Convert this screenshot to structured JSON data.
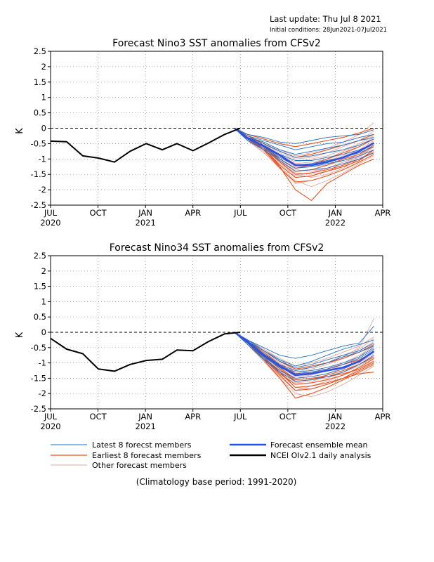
{
  "header": {
    "last_update": "Last update: Thu Jul 8 2021",
    "initial_conditions": "Initial conditions: 28Jun2021-07Jul2021"
  },
  "legend": {
    "latest": "Latest 8 forecst members",
    "earliest": "Earliest 8 forecast members",
    "other": "Other forecast members",
    "mean": "Forecast ensemble mean",
    "analysis": "NCEI OIv2.1 daily analysis"
  },
  "footer": "(Climatology base period: 1991-2020)",
  "colors": {
    "latest": "#1f6fc4",
    "earliest": "#e8501a",
    "other": "#e0a8a0",
    "mean": "#2a4fe6",
    "analysis": "#000000",
    "grid": "#909090"
  },
  "chart_data": [
    {
      "type": "line",
      "title": "Forecast Nino3 SST anomalies from CFSv2",
      "ylabel": "K",
      "xlabel": "",
      "ylim": [
        -2.5,
        2.5
      ],
      "yticks": [
        "2.5",
        "2",
        "1.5",
        "1",
        "0.5",
        "0",
        "-0.5",
        "-1",
        "-1.5",
        "-2",
        "-2.5"
      ],
      "xticks": [
        {
          "month": "JUL",
          "year": "2020"
        },
        {
          "month": "OCT",
          "year": ""
        },
        {
          "month": "JAN",
          "year": "2021"
        },
        {
          "month": "APR",
          "year": ""
        },
        {
          "month": "JUL",
          "year": ""
        },
        {
          "month": "OCT",
          "year": ""
        },
        {
          "month": "JAN",
          "year": "2022"
        },
        {
          "month": "APR",
          "year": ""
        }
      ],
      "grid": true,
      "observed": {
        "name": "NCEI OIv2.1 daily analysis",
        "x": [
          "2020-07-01",
          "2020-08-01",
          "2020-09-01",
          "2020-10-01",
          "2020-11-01",
          "2020-12-01",
          "2021-01-01",
          "2021-02-01",
          "2021-03-01",
          "2021-04-01",
          "2021-05-01",
          "2021-06-01",
          "2021-07-01"
        ],
        "y": [
          -0.42,
          -0.44,
          -0.9,
          -0.97,
          -1.1,
          -0.75,
          -0.5,
          -0.7,
          -0.5,
          -0.73,
          -0.48,
          -0.2,
          0.0
        ]
      },
      "forecast_months": [
        "2021-06-20",
        "2021-07-15",
        "2021-08-15",
        "2021-09-15",
        "2021-10-15",
        "2021-11-15",
        "2021-12-15",
        "2022-01-15",
        "2022-02-15",
        "2022-03-15"
      ],
      "ensemble_mean": [
        0.0,
        -0.32,
        -0.58,
        -0.88,
        -1.2,
        -1.2,
        -1.1,
        -0.95,
        -0.75,
        -0.48
      ],
      "latest_members": [
        [
          0.0,
          -0.2,
          -0.3,
          -0.45,
          -0.5,
          -0.4,
          -0.3,
          -0.25,
          -0.2,
          -0.05
        ],
        [
          0.0,
          -0.25,
          -0.4,
          -0.55,
          -0.7,
          -0.6,
          -0.5,
          -0.45,
          -0.3,
          -0.2
        ],
        [
          0.0,
          -0.3,
          -0.45,
          -0.7,
          -0.85,
          -0.75,
          -0.65,
          -0.55,
          -0.4,
          -0.3
        ],
        [
          0.0,
          -0.3,
          -0.5,
          -0.75,
          -0.95,
          -0.9,
          -0.8,
          -0.7,
          -0.55,
          -0.35
        ],
        [
          0.0,
          -0.35,
          -0.55,
          -0.85,
          -1.05,
          -1.05,
          -0.95,
          -0.85,
          -0.7,
          -0.5
        ],
        [
          0.0,
          -0.35,
          -0.6,
          -0.95,
          -1.2,
          -1.15,
          -1.05,
          -0.95,
          -0.8,
          -0.6
        ],
        [
          0.0,
          -0.4,
          -0.65,
          -1.0,
          -1.3,
          -1.25,
          -1.15,
          -1.05,
          -0.9,
          -0.7
        ],
        [
          0.0,
          -0.4,
          -0.7,
          -1.05,
          -1.4,
          -1.35,
          -1.3,
          -1.15,
          -1.0,
          -0.8
        ]
      ],
      "earliest_members": [
        [
          0.0,
          -0.3,
          -0.6,
          -1.1,
          -1.5,
          -1.45,
          -1.35,
          -1.2,
          -1.0,
          -0.8
        ],
        [
          0.0,
          -0.35,
          -0.7,
          -1.3,
          -1.75,
          -1.7,
          -1.55,
          -1.35,
          -1.1,
          -0.85
        ],
        [
          0.0,
          -0.3,
          -0.65,
          -1.25,
          -2.0,
          -2.35,
          -1.8,
          -1.5,
          -1.2,
          -1.0
        ],
        [
          0.0,
          -0.3,
          -0.55,
          -1.0,
          -1.3,
          -1.2,
          -1.0,
          -0.8,
          -0.6,
          -0.35
        ],
        [
          0.0,
          -0.25,
          -0.5,
          -0.75,
          -0.95,
          -0.85,
          -0.7,
          -0.55,
          -0.4,
          -0.2
        ],
        [
          0.0,
          -0.2,
          -0.35,
          -0.5,
          -0.6,
          -0.5,
          -0.4,
          -0.3,
          -0.15,
          0.0
        ],
        [
          0.0,
          -0.35,
          -0.65,
          -1.2,
          -1.6,
          -1.55,
          -1.4,
          -1.25,
          -1.05,
          -0.7
        ],
        [
          0.0,
          -0.3,
          -0.6,
          -1.05,
          -1.4,
          -1.35,
          -1.2,
          -1.0,
          -0.85,
          -0.55
        ]
      ],
      "other_members": [
        [
          0.0,
          -0.3,
          -0.6,
          -1.0,
          -1.35,
          -1.4,
          -1.3,
          -1.1,
          -0.9,
          -0.55
        ],
        [
          0.0,
          -0.35,
          -0.75,
          -1.2,
          -1.6,
          -1.55,
          -1.4,
          -1.2,
          -0.9,
          -0.6
        ],
        [
          0.0,
          -0.25,
          -0.45,
          -0.7,
          -0.9,
          -0.8,
          -0.65,
          -0.45,
          -0.2,
          0.18
        ],
        [
          0.0,
          -0.3,
          -0.55,
          -0.9,
          -1.15,
          -1.1,
          -1.0,
          -0.85,
          -0.6,
          -0.35
        ],
        [
          0.0,
          -0.4,
          -0.8,
          -1.3,
          -1.8,
          -1.7,
          -1.55,
          -1.35,
          -1.1,
          -0.85
        ],
        [
          0.0,
          -0.3,
          -0.6,
          -0.95,
          -1.25,
          -1.2,
          -1.05,
          -0.9,
          -0.7,
          -0.4
        ],
        [
          0.0,
          -0.35,
          -0.7,
          -1.1,
          -1.45,
          -1.5,
          -1.4,
          -1.25,
          -1.05,
          -0.75
        ],
        [
          0.0,
          -0.25,
          -0.5,
          -0.8,
          -1.0,
          -0.95,
          -0.8,
          -0.6,
          -0.4,
          -0.1
        ],
        [
          0.0,
          -0.3,
          -0.65,
          -1.05,
          -1.5,
          -1.6,
          -1.5,
          -1.3,
          -1.0,
          -0.7
        ],
        [
          0.0,
          -0.35,
          -0.6,
          -1.0,
          -1.3,
          -1.25,
          -1.2,
          -1.05,
          -0.85,
          -0.5
        ],
        [
          0.0,
          -0.4,
          -0.75,
          -1.25,
          -1.7,
          -1.9,
          -1.7,
          -1.45,
          -1.15,
          -0.9
        ],
        [
          0.0,
          -0.3,
          -0.55,
          -0.85,
          -1.1,
          -1.0,
          -0.9,
          -0.7,
          -0.5,
          -0.25
        ],
        [
          0.0,
          -0.35,
          -0.7,
          -1.15,
          -1.55,
          -1.45,
          -1.3,
          -1.1,
          -0.95,
          -0.6
        ],
        [
          0.0,
          -0.25,
          -0.5,
          -0.9,
          -1.2,
          -1.15,
          -1.0,
          -0.75,
          -0.55,
          -0.3
        ]
      ]
    },
    {
      "type": "line",
      "title": "Forecast Nino34 SST anomalies from CFSv2",
      "ylabel": "K",
      "xlabel": "",
      "ylim": [
        -2.5,
        2.5
      ],
      "yticks": [
        "2.5",
        "2",
        "1.5",
        "1",
        "0.5",
        "0",
        "-0.5",
        "-1",
        "-1.5",
        "-2",
        "-2.5"
      ],
      "xticks": [
        {
          "month": "JUL",
          "year": "2020"
        },
        {
          "month": "OCT",
          "year": ""
        },
        {
          "month": "JAN",
          "year": "2021"
        },
        {
          "month": "APR",
          "year": ""
        },
        {
          "month": "JUL",
          "year": ""
        },
        {
          "month": "OCT",
          "year": ""
        },
        {
          "month": "JAN",
          "year": "2022"
        },
        {
          "month": "APR",
          "year": ""
        }
      ],
      "grid": true,
      "observed": {
        "name": "NCEI OIv2.1 daily analysis",
        "x": [
          "2020-07-01",
          "2020-08-01",
          "2020-09-01",
          "2020-10-01",
          "2020-11-01",
          "2020-12-01",
          "2021-01-01",
          "2021-02-01",
          "2021-03-01",
          "2021-04-01",
          "2021-05-01",
          "2021-06-01",
          "2021-07-01"
        ],
        "y": [
          -0.2,
          -0.55,
          -0.7,
          -1.2,
          -1.27,
          -1.05,
          -0.92,
          -0.88,
          -0.58,
          -0.6,
          -0.3,
          -0.05,
          0.0
        ]
      },
      "forecast_months": [
        "2021-06-20",
        "2021-07-15",
        "2021-08-15",
        "2021-09-15",
        "2021-10-15",
        "2021-11-15",
        "2021-12-15",
        "2022-01-15",
        "2022-02-15",
        "2022-03-15"
      ],
      "ensemble_mean": [
        0.0,
        -0.3,
        -0.75,
        -1.1,
        -1.4,
        -1.35,
        -1.25,
        -1.15,
        -0.95,
        -0.62
      ],
      "latest_members": [
        [
          0.0,
          -0.25,
          -0.5,
          -0.75,
          -0.85,
          -0.75,
          -0.6,
          -0.45,
          -0.35,
          0.2
        ],
        [
          0.0,
          -0.3,
          -0.6,
          -0.9,
          -1.1,
          -0.95,
          -0.75,
          -0.55,
          -0.4,
          -0.25
        ],
        [
          0.0,
          -0.3,
          -0.7,
          -1.05,
          -1.25,
          -1.15,
          -1.0,
          -0.8,
          -0.65,
          -0.45
        ],
        [
          0.0,
          -0.35,
          -0.8,
          -1.15,
          -1.35,
          -1.3,
          -1.2,
          -1.05,
          -0.85,
          -0.55
        ],
        [
          0.0,
          -0.35,
          -0.85,
          -1.25,
          -1.5,
          -1.45,
          -1.35,
          -1.2,
          -0.95,
          -0.65
        ],
        [
          0.0,
          -0.4,
          -0.9,
          -1.3,
          -1.6,
          -1.55,
          -1.45,
          -1.3,
          -1.05,
          -0.75
        ],
        [
          0.0,
          -0.3,
          -0.75,
          -1.1,
          -1.3,
          -1.25,
          -1.15,
          -1.0,
          -0.8,
          -0.5
        ],
        [
          0.0,
          -0.25,
          -0.6,
          -0.95,
          -1.15,
          -1.05,
          -0.9,
          -0.75,
          -0.6,
          -0.35
        ]
      ],
      "earliest_members": [
        [
          0.0,
          -0.35,
          -0.9,
          -1.5,
          -2.15,
          -2.0,
          -1.8,
          -1.55,
          -1.3,
          -1.05
        ],
        [
          0.0,
          -0.35,
          -0.85,
          -1.4,
          -1.9,
          -1.85,
          -1.7,
          -1.5,
          -1.25,
          -1.0
        ],
        [
          0.0,
          -0.3,
          -0.8,
          -1.3,
          -1.8,
          -1.75,
          -1.65,
          -1.5,
          -1.35,
          -1.3
        ],
        [
          0.0,
          -0.3,
          -0.7,
          -1.15,
          -1.55,
          -1.5,
          -1.45,
          -1.35,
          -1.2,
          -0.95
        ],
        [
          0.0,
          -0.3,
          -0.75,
          -1.2,
          -1.6,
          -1.55,
          -1.4,
          -1.25,
          -1.05,
          -0.8
        ],
        [
          0.0,
          -0.25,
          -0.6,
          -0.95,
          -1.2,
          -1.1,
          -1.0,
          -0.85,
          -0.65,
          -0.4
        ],
        [
          0.0,
          -0.35,
          -0.8,
          -1.35,
          -1.7,
          -1.65,
          -1.55,
          -1.4,
          -1.15,
          -0.85
        ],
        [
          0.0,
          -0.3,
          -0.65,
          -1.05,
          -1.35,
          -1.3,
          -1.2,
          -1.05,
          -0.9,
          -0.65
        ]
      ],
      "other_members": [
        [
          0.0,
          -0.25,
          -0.55,
          -0.9,
          -1.2,
          -1.15,
          -1.0,
          -0.8,
          -0.5,
          0.45
        ],
        [
          0.0,
          -0.3,
          -0.7,
          -1.1,
          -1.45,
          -1.4,
          -1.25,
          -1.05,
          -0.8,
          -0.4
        ],
        [
          0.0,
          -0.35,
          -0.85,
          -1.35,
          -1.8,
          -1.85,
          -1.7,
          -1.5,
          -1.2,
          -0.9
        ],
        [
          0.0,
          -0.3,
          -0.65,
          -1.0,
          -1.3,
          -1.2,
          -1.05,
          -0.85,
          -0.6,
          -0.3
        ],
        [
          0.0,
          -0.3,
          -0.75,
          -1.2,
          -1.55,
          -1.5,
          -1.4,
          -1.25,
          -1.0,
          -0.7
        ],
        [
          0.0,
          -0.4,
          -0.95,
          -1.5,
          -2.0,
          -2.1,
          -1.95,
          -1.7,
          -1.4,
          -1.1
        ],
        [
          0.0,
          -0.25,
          -0.6,
          -0.95,
          -1.25,
          -1.15,
          -1.0,
          -0.75,
          -0.55,
          -0.2
        ],
        [
          0.0,
          -0.3,
          -0.7,
          -1.15,
          -1.5,
          -1.45,
          -1.35,
          -1.15,
          -0.9,
          -0.6
        ],
        [
          0.0,
          -0.35,
          -0.8,
          -1.25,
          -1.65,
          -1.6,
          -1.45,
          -1.3,
          -1.05,
          -0.75
        ],
        [
          0.0,
          -0.3,
          -0.7,
          -1.05,
          -1.4,
          -1.3,
          -1.2,
          -1.0,
          -0.75,
          -0.45
        ],
        [
          0.0,
          -0.35,
          -0.9,
          -1.45,
          -1.9,
          -1.75,
          -1.6,
          -1.4,
          -1.15,
          -0.85
        ],
        [
          0.0,
          -0.25,
          -0.55,
          -0.85,
          -1.1,
          -1.0,
          -0.85,
          -0.65,
          -0.45,
          -0.15
        ],
        [
          0.0,
          -0.3,
          -0.75,
          -1.2,
          -1.6,
          -1.55,
          -1.5,
          -1.3,
          -1.1,
          -0.8
        ],
        [
          0.0,
          -0.35,
          -0.8,
          -1.3,
          -1.7,
          -1.65,
          -1.55,
          -1.4,
          -1.2,
          -0.95
        ]
      ]
    }
  ]
}
